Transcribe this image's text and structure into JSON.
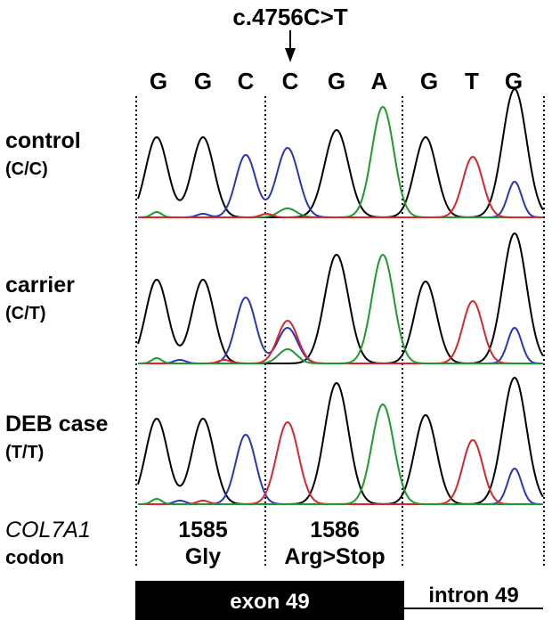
{
  "mutation_label": "c.4756C>T",
  "bases": [
    "G",
    "G",
    "C",
    "C",
    "G",
    "A",
    "G",
    "T",
    "G"
  ],
  "samples": [
    {
      "name": "control",
      "genotype": "(C/C)"
    },
    {
      "name": "carrier",
      "genotype": "(C/T)"
    },
    {
      "name": "DEB case",
      "genotype": "(T/T)"
    }
  ],
  "gene_label": "COL7A1",
  "codon_label": "codon",
  "codons": [
    {
      "number": "1585",
      "aa": "Gly"
    },
    {
      "number": "1586",
      "aa": "Arg>Stop"
    }
  ],
  "exon_label": "exon 49",
  "intron_label": "intron 49",
  "colors": {
    "G": "#000000",
    "C": "#2a36b8",
    "A": "#1f9a2e",
    "T": "#d8262b",
    "exon_fill": "#000000"
  }
}
